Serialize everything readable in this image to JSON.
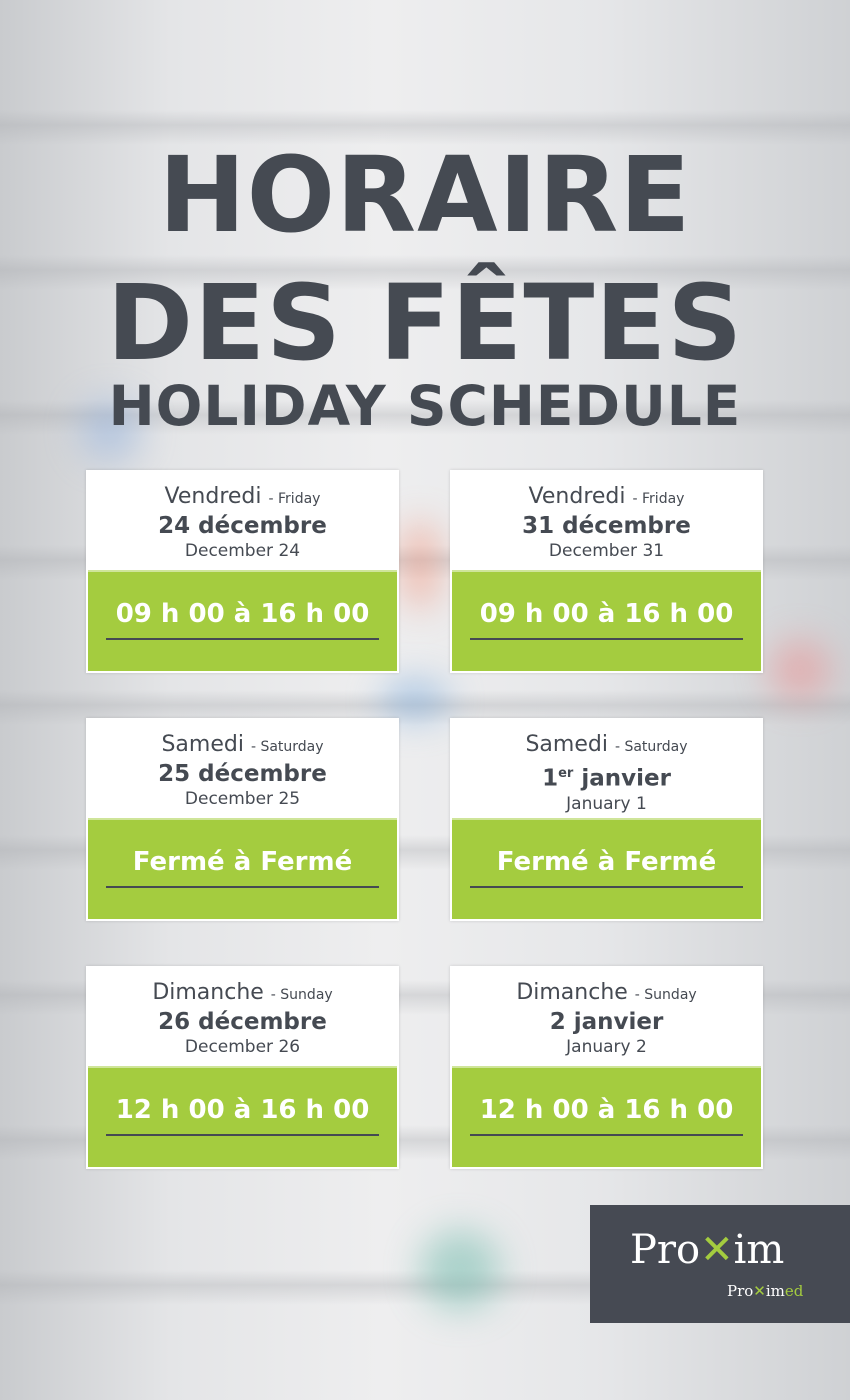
{
  "title": {
    "line1": "HORAIRE",
    "line2": "DES FÊTES",
    "line3": "HOLIDAY SCHEDULE"
  },
  "cards": [
    {
      "day_fr": "Vendredi",
      "day_en": "- Friday",
      "date_fr": "24 décembre",
      "date_en": "December 24",
      "hours": "09 h 00 à 16 h 00"
    },
    {
      "day_fr": "Vendredi",
      "day_en": "- Friday",
      "date_fr": "31 décembre",
      "date_en": "December 31",
      "hours": "09 h 00 à 16 h 00"
    },
    {
      "day_fr": "Samedi",
      "day_en": "- Saturday",
      "date_fr": "25 décembre",
      "date_en": "December 25",
      "hours": "Fermé à Fermé"
    },
    {
      "day_fr": "Samedi",
      "day_en": "- Saturday",
      "date_num": "1",
      "date_sup": "er",
      "date_rest": " janvier",
      "date_en": "January 1",
      "hours": "Fermé à Fermé"
    },
    {
      "day_fr": "Dimanche",
      "day_en": "- Sunday",
      "date_fr": "26 décembre",
      "date_en": "December 26",
      "hours": "12 h 00 à 16 h 00"
    },
    {
      "day_fr": "Dimanche",
      "day_en": "- Sunday",
      "date_fr": "2 janvier",
      "date_en": "January 2",
      "hours": "12 h 00 à 16 h 00"
    }
  ],
  "logo": {
    "brand": "Proxim",
    "sub": "Proximed"
  },
  "colors": {
    "accent": "#a4cc3f",
    "text": "#454a52"
  }
}
